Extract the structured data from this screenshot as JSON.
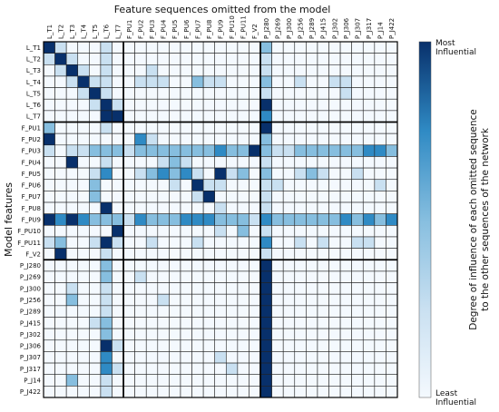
{
  "chart_data": {
    "type": "heatmap",
    "title": "Feature sequences omitted from the model",
    "ylabel": "Model features",
    "colorbar": {
      "label_line1": "Degree of influence of each omitted sequence",
      "label_line2": "to the other sequences of the network",
      "top_label": "Most\nInfluential",
      "bottom_label": "Least\nInfluential",
      "range": [
        0,
        4
      ],
      "colors": [
        "#f4f9fe",
        "#c9e0f1",
        "#86bedf",
        "#2f8ac4",
        "#08306b"
      ]
    },
    "columns": [
      "L_T1",
      "L_T2",
      "L_T3",
      "L_T4",
      "L_T5",
      "L_T6",
      "L_T7",
      "F_PU1",
      "F_PU2",
      "F_PU3",
      "F_PU4",
      "F_PU5",
      "F_PU6",
      "F_PU7",
      "F_PU8",
      "F_PU9",
      "F_PU10",
      "F_PU11",
      "F_V2",
      "P_J280",
      "P_J269",
      "P_J300",
      "P_J256",
      "P_J289",
      "P_J415",
      "P_J302",
      "P_J306",
      "P_J307",
      "P_J317",
      "P_J14",
      "P_J422"
    ],
    "rows": [
      "L_T1",
      "L_T2",
      "L_T3",
      "L_T4",
      "L_T5",
      "L_T6",
      "L_T7",
      "F_PU1",
      "F_PU2",
      "F_PU3",
      "F_PU4",
      "F_PU5",
      "F_PU6",
      "F_PU7",
      "F_PU8",
      "F_PU9",
      "F_PU10",
      "F_PU11",
      "F_V2",
      "P_J280",
      "P_J269",
      "P_J300",
      "P_J256",
      "P_J289",
      "P_J415",
      "P_J302",
      "P_J306",
      "P_J307",
      "P_J317",
      "P_J14",
      "P_J422"
    ],
    "group_boundaries_after": [
      6,
      18
    ],
    "values": [
      [
        4,
        1,
        0,
        0,
        0,
        1,
        0,
        0,
        0,
        0,
        0,
        0,
        0,
        0,
        0,
        0,
        0,
        0,
        0,
        2,
        0,
        0,
        0,
        0,
        0,
        0,
        0,
        0,
        0,
        0,
        0
      ],
      [
        1,
        4,
        1,
        0,
        0,
        1,
        0,
        0,
        0,
        0,
        0,
        0,
        0,
        0,
        0,
        0,
        0,
        0,
        0,
        1,
        0,
        0,
        0,
        0,
        0,
        0,
        0,
        0,
        0,
        0,
        0
      ],
      [
        0,
        1,
        4,
        1,
        0,
        1,
        0,
        0,
        0,
        1,
        0,
        0,
        0,
        0,
        0,
        0,
        0,
        0,
        0,
        1,
        0,
        0,
        0,
        0,
        0,
        0,
        0,
        0,
        0,
        0,
        0
      ],
      [
        0,
        0,
        1,
        4,
        1,
        1,
        0,
        0,
        1,
        1,
        1,
        0,
        0,
        2,
        1,
        1,
        0,
        0,
        0,
        2,
        0,
        0,
        1,
        0,
        0,
        1,
        1,
        0,
        0,
        0,
        0
      ],
      [
        0,
        0,
        0,
        1,
        4,
        1,
        0,
        0,
        0,
        0,
        0,
        0,
        0,
        0,
        0,
        0,
        0,
        0,
        0,
        1,
        0,
        0,
        0,
        0,
        0,
        0,
        1,
        0,
        0,
        0,
        0
      ],
      [
        0,
        0,
        0,
        0,
        1,
        4,
        1,
        0,
        0,
        0,
        0,
        0,
        0,
        0,
        0,
        0,
        0,
        0,
        0,
        4,
        0,
        0,
        0,
        0,
        0,
        0,
        0,
        0,
        0,
        0,
        0
      ],
      [
        0,
        0,
        0,
        0,
        0,
        4,
        4,
        0,
        0,
        0,
        0,
        0,
        0,
        0,
        0,
        0,
        0,
        0,
        0,
        3,
        0,
        0,
        0,
        0,
        0,
        0,
        0,
        0,
        0,
        0,
        0
      ],
      [
        2,
        0,
        0,
        0,
        0,
        1,
        0,
        0,
        0,
        0,
        0,
        0,
        0,
        0,
        0,
        0,
        0,
        0,
        0,
        4,
        0,
        0,
        0,
        0,
        0,
        0,
        0,
        0,
        0,
        0,
        0
      ],
      [
        4,
        0,
        0,
        0,
        0,
        0,
        0,
        0,
        3,
        1,
        0,
        0,
        0,
        0,
        0,
        0,
        0,
        0,
        0,
        2,
        0,
        0,
        0,
        0,
        0,
        0,
        0,
        0,
        0,
        0,
        0
      ],
      [
        1,
        0,
        1,
        1,
        2,
        2,
        2,
        1,
        2,
        2,
        2,
        2,
        2,
        2,
        2,
        3,
        2,
        2,
        4,
        2,
        1,
        1,
        2,
        2,
        2,
        2,
        2,
        2,
        3,
        3,
        2
      ],
      [
        0,
        0,
        4,
        0,
        0,
        1,
        0,
        0,
        0,
        0,
        1,
        2,
        1,
        0,
        0,
        0,
        0,
        0,
        0,
        1,
        0,
        0,
        0,
        0,
        0,
        0,
        0,
        0,
        0,
        0,
        0
      ],
      [
        0,
        0,
        0,
        0,
        1,
        3,
        0,
        0,
        1,
        2,
        3,
        2,
        3,
        1,
        0,
        4,
        1,
        2,
        0,
        2,
        0,
        0,
        1,
        2,
        1,
        0,
        0,
        1,
        0,
        0,
        0
      ],
      [
        0,
        0,
        0,
        0,
        2,
        0,
        0,
        0,
        0,
        0,
        0,
        1,
        0,
        4,
        1,
        1,
        0,
        0,
        0,
        1,
        1,
        0,
        0,
        0,
        0,
        0,
        0,
        0,
        0,
        1,
        0
      ],
      [
        0,
        0,
        0,
        0,
        2,
        0,
        0,
        0,
        0,
        0,
        0,
        0,
        0,
        1,
        4,
        0,
        0,
        0,
        0,
        1,
        0,
        0,
        0,
        0,
        0,
        0,
        0,
        0,
        0,
        0,
        0
      ],
      [
        0,
        0,
        0,
        0,
        0,
        4,
        0,
        0,
        0,
        0,
        0,
        0,
        0,
        0,
        0,
        1,
        0,
        0,
        0,
        1,
        0,
        0,
        0,
        0,
        0,
        0,
        0,
        0,
        0,
        0,
        0
      ],
      [
        4,
        3,
        4,
        3,
        2,
        2,
        2,
        1,
        3,
        2,
        2,
        2,
        3,
        3,
        3,
        2,
        2,
        2,
        1,
        3,
        2,
        2,
        2,
        2,
        2,
        2,
        3,
        2,
        3,
        2,
        3
      ],
      [
        0,
        0,
        0,
        0,
        0,
        0,
        4,
        0,
        0,
        0,
        0,
        0,
        0,
        0,
        0,
        1,
        0,
        2,
        0,
        1,
        0,
        0,
        0,
        0,
        0,
        0,
        0,
        0,
        0,
        0,
        0
      ],
      [
        1,
        2,
        0,
        0,
        1,
        4,
        1,
        0,
        0,
        1,
        0,
        0,
        0,
        1,
        0,
        0,
        0,
        0,
        0,
        3,
        0,
        0,
        1,
        0,
        1,
        0,
        0,
        1,
        1,
        0,
        0
      ],
      [
        0,
        4,
        0,
        0,
        0,
        1,
        0,
        0,
        0,
        0,
        0,
        0,
        0,
        0,
        0,
        0,
        0,
        0,
        0,
        1,
        0,
        0,
        0,
        0,
        0,
        0,
        0,
        0,
        0,
        0,
        0
      ],
      [
        0,
        0,
        0,
        0,
        0,
        2,
        0,
        0,
        0,
        0,
        0,
        0,
        0,
        0,
        0,
        0,
        0,
        0,
        0,
        4,
        0,
        0,
        0,
        0,
        0,
        0,
        0,
        0,
        0,
        0,
        0
      ],
      [
        0,
        0,
        0,
        0,
        0,
        2,
        0,
        0,
        1,
        0,
        0,
        0,
        0,
        0,
        0,
        0,
        0,
        0,
        0,
        4,
        0,
        0,
        0,
        0,
        0,
        0,
        0,
        0,
        0,
        0,
        0
      ],
      [
        0,
        0,
        1,
        0,
        0,
        1,
        0,
        0,
        0,
        0,
        0,
        0,
        0,
        0,
        0,
        0,
        0,
        0,
        0,
        4,
        0,
        0,
        0,
        0,
        0,
        0,
        0,
        0,
        0,
        0,
        0
      ],
      [
        0,
        0,
        2,
        0,
        0,
        1,
        0,
        0,
        0,
        0,
        1,
        0,
        0,
        0,
        0,
        0,
        0,
        0,
        0,
        4,
        0,
        0,
        0,
        0,
        0,
        0,
        0,
        0,
        0,
        0,
        0
      ],
      [
        0,
        0,
        0,
        0,
        0,
        1,
        0,
        0,
        0,
        0,
        0,
        0,
        0,
        0,
        0,
        0,
        0,
        0,
        0,
        4,
        0,
        0,
        0,
        0,
        0,
        0,
        0,
        0,
        0,
        0,
        0
      ],
      [
        0,
        0,
        0,
        0,
        1,
        2,
        0,
        0,
        0,
        0,
        0,
        0,
        0,
        0,
        0,
        0,
        0,
        0,
        0,
        4,
        0,
        0,
        0,
        0,
        0,
        0,
        0,
        0,
        0,
        0,
        0
      ],
      [
        0,
        0,
        0,
        0,
        0,
        2,
        0,
        0,
        0,
        0,
        0,
        0,
        0,
        0,
        0,
        0,
        0,
        0,
        0,
        4,
        0,
        0,
        0,
        0,
        0,
        0,
        0,
        0,
        0,
        0,
        0
      ],
      [
        0,
        0,
        0,
        0,
        0,
        4,
        1,
        0,
        0,
        0,
        0,
        0,
        0,
        0,
        0,
        0,
        0,
        0,
        0,
        4,
        0,
        0,
        0,
        0,
        0,
        0,
        0,
        0,
        0,
        0,
        0
      ],
      [
        0,
        0,
        0,
        0,
        0,
        3,
        0,
        0,
        0,
        0,
        0,
        0,
        0,
        0,
        0,
        1,
        0,
        0,
        0,
        4,
        0,
        0,
        0,
        0,
        0,
        0,
        0,
        0,
        0,
        0,
        0
      ],
      [
        0,
        0,
        0,
        0,
        0,
        3,
        1,
        0,
        0,
        0,
        0,
        0,
        0,
        0,
        0,
        0,
        1,
        0,
        0,
        4,
        0,
        0,
        0,
        0,
        0,
        0,
        0,
        0,
        0,
        0,
        0
      ],
      [
        0,
        0,
        2,
        0,
        0,
        1,
        0,
        0,
        0,
        0,
        0,
        0,
        0,
        0,
        0,
        0,
        0,
        0,
        0,
        4,
        0,
        0,
        0,
        0,
        0,
        0,
        0,
        0,
        0,
        0,
        0
      ],
      [
        0,
        0,
        0,
        0,
        0,
        1,
        0,
        0,
        0,
        0,
        0,
        0,
        0,
        0,
        0,
        0,
        0,
        0,
        0,
        4,
        0,
        0,
        0,
        0,
        0,
        0,
        0,
        0,
        0,
        0,
        0
      ]
    ]
  }
}
